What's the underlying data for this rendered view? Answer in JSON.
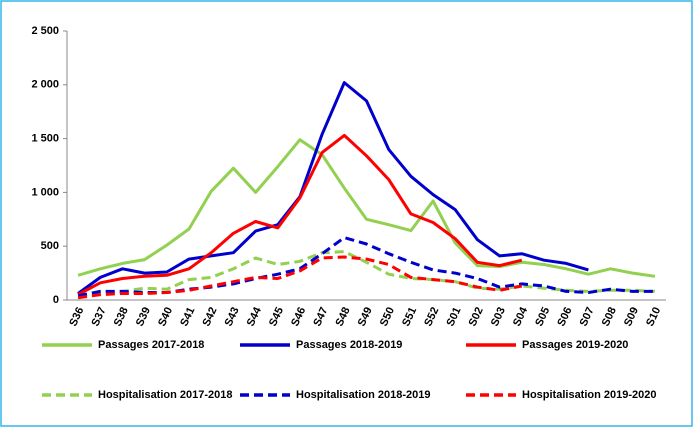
{
  "chart_data": {
    "type": "line",
    "categories": [
      "S36",
      "S37",
      "S38",
      "S39",
      "S40",
      "S41",
      "S42",
      "S43",
      "S44",
      "S45",
      "S46",
      "S47",
      "S48",
      "S49",
      "S50",
      "S51",
      "S52",
      "S01",
      "S02",
      "S03",
      "S04",
      "S05",
      "S06",
      "S07",
      "S08",
      "S09",
      "S10"
    ],
    "ylim": [
      0,
      2500
    ],
    "yticks": [
      0,
      500,
      {
        "value": 1000,
        "label": "1 000"
      },
      {
        "value": 1500,
        "label": "1 500"
      },
      {
        "value": 2000,
        "label": "2 000"
      },
      {
        "value": 2500,
        "label": "2 500"
      }
    ],
    "grid": false,
    "series": [
      {
        "name": "Passages 2017-2018",
        "color": "#92d050",
        "dashed": false,
        "values": [
          230,
          290,
          340,
          375,
          510,
          660,
          1010,
          1225,
          1000,
          1240,
          1490,
          1350,
          1040,
          750,
          700,
          645,
          920,
          530,
          320,
          310,
          350,
          330,
          290,
          240,
          290,
          250,
          220
        ]
      },
      {
        "name": "Passages 2018-2019",
        "color": "#0000cc",
        "dashed": false,
        "values": [
          60,
          210,
          290,
          250,
          260,
          380,
          410,
          440,
          640,
          700,
          960,
          1540,
          2020,
          1850,
          1400,
          1150,
          980,
          840,
          560,
          410,
          430,
          370,
          340,
          280,
          null,
          null,
          null
        ]
      },
      {
        "name": "Passages 2019-2020",
        "color": "#ff0000",
        "dashed": false,
        "values": [
          50,
          160,
          200,
          220,
          230,
          290,
          440,
          620,
          730,
          670,
          950,
          1370,
          1530,
          1340,
          1120,
          800,
          720,
          570,
          350,
          320,
          370,
          null,
          null,
          null,
          null,
          null,
          null
        ]
      },
      {
        "name": "Hospitalisation 2017-2018",
        "color": "#92d050",
        "dashed": true,
        "values": [
          40,
          60,
          80,
          110,
          100,
          190,
          210,
          290,
          390,
          330,
          360,
          440,
          450,
          350,
          240,
          200,
          190,
          170,
          110,
          100,
          130,
          110,
          90,
          80,
          90,
          90,
          80
        ]
      },
      {
        "name": "Hospitalisation 2018-2019",
        "color": "#0000cc",
        "dashed": true,
        "values": [
          40,
          80,
          80,
          70,
          70,
          100,
          120,
          150,
          200,
          240,
          290,
          430,
          580,
          520,
          430,
          350,
          280,
          250,
          200,
          120,
          150,
          130,
          80,
          70,
          100,
          80,
          80
        ]
      },
      {
        "name": "Hospitalisation 2019-2020",
        "color": "#ff0000",
        "dashed": true,
        "values": [
          20,
          50,
          60,
          60,
          70,
          90,
          130,
          170,
          210,
          200,
          270,
          390,
          400,
          380,
          330,
          210,
          190,
          170,
          120,
          90,
          130,
          null,
          null,
          null,
          null,
          null,
          null
        ]
      }
    ]
  }
}
